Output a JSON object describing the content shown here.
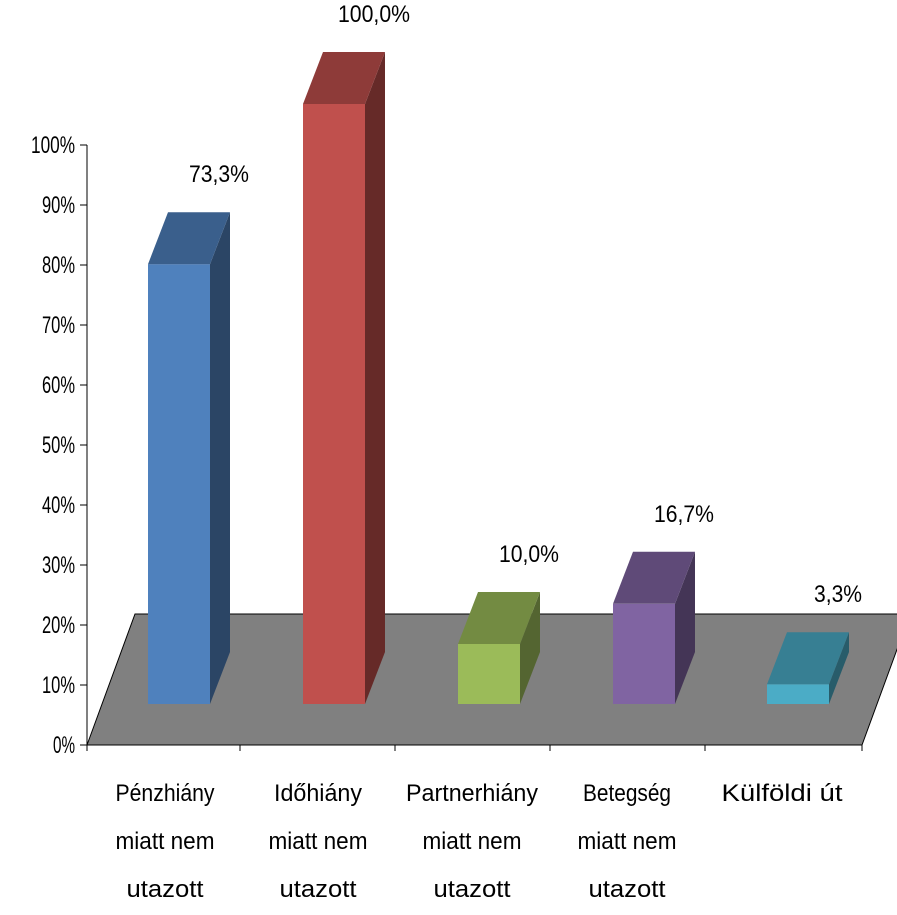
{
  "chart_data": {
    "type": "bar",
    "categories": [
      [
        "Pénzhiány",
        "miatt nem",
        "utazott"
      ],
      [
        "Időhiány",
        "miatt nem",
        "utazott"
      ],
      [
        "Partnerhiány",
        "miatt nem",
        "utazott"
      ],
      [
        "Betegség",
        "miatt nem",
        "utazott"
      ],
      [
        "Külföldi út"
      ]
    ],
    "values": [
      73.3,
      100.0,
      10.0,
      16.7,
      3.3
    ],
    "data_labels": [
      "73,3%",
      "100,0%",
      "10,0%",
      "16,7%",
      "3,3%"
    ],
    "ylim": [
      0,
      100
    ],
    "yticks": [
      "0%",
      "10%",
      "20%",
      "30%",
      "40%",
      "50%",
      "60%",
      "70%",
      "80%",
      "90%",
      "100%"
    ],
    "style": "3d-column",
    "grid": false,
    "legend": "none"
  },
  "colors": {
    "bars": [
      {
        "front": "#4f81bd",
        "top": "#3a5f8c",
        "side": "#2b4565"
      },
      {
        "front": "#c0504d",
        "top": "#8e3b39",
        "side": "#662a28"
      },
      {
        "front": "#9bbb59",
        "top": "#738b42",
        "side": "#546531"
      },
      {
        "front": "#8064a2",
        "top": "#5f4a78",
        "side": "#443556"
      },
      {
        "front": "#4bacc6",
        "top": "#377f93",
        "side": "#285c6a"
      }
    ],
    "floor": "#808080",
    "axis": "#000000"
  }
}
